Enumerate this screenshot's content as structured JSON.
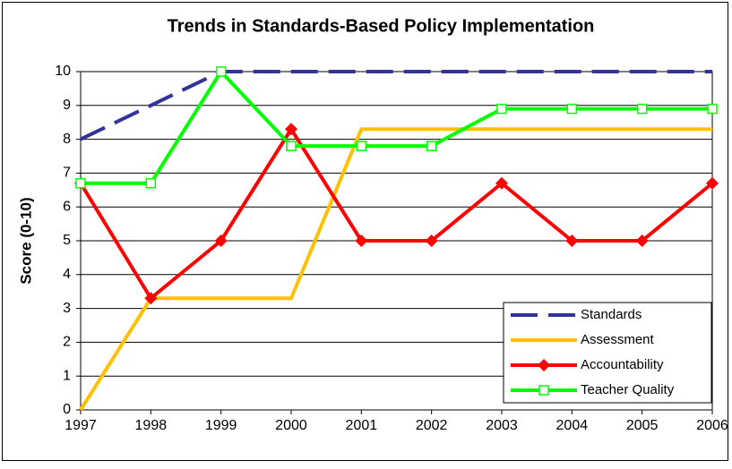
{
  "chart_data": {
    "type": "line",
    "title": "Trends in Standards-Based Policy Implementation",
    "y_label": "Score (0-10)",
    "x": [
      1997,
      1998,
      1999,
      2000,
      2001,
      2002,
      2003,
      2004,
      2005,
      2006
    ],
    "xlim": [
      1997,
      2006
    ],
    "xticks": [
      1997,
      1998,
      1999,
      2000,
      2001,
      2002,
      2003,
      2004,
      2005,
      2006
    ],
    "ylim": [
      0,
      10
    ],
    "yticks": [
      0,
      1,
      2,
      3,
      4,
      5,
      6,
      7,
      8,
      9,
      10
    ],
    "grid": true,
    "legend": "lower right",
    "series": [
      {
        "name": "Standards",
        "color": "#333399",
        "line_style": "dashed",
        "marker": "none",
        "values": [
          8,
          9,
          10,
          10,
          10,
          10,
          10,
          10,
          10,
          10
        ]
      },
      {
        "name": "Assessment",
        "color": "#ffc000",
        "line_style": "solid",
        "marker": "none",
        "values": [
          0,
          3.3,
          3.3,
          3.3,
          8.3,
          8.3,
          8.3,
          8.3,
          8.3,
          8.3
        ]
      },
      {
        "name": "Accountability",
        "color": "#ff0000",
        "line_style": "solid",
        "marker": "diamond",
        "values": [
          6.7,
          3.3,
          5,
          8.3,
          5,
          5,
          6.7,
          5,
          5,
          6.7
        ]
      },
      {
        "name": "Teacher Quality",
        "color": "#00ff00",
        "line_style": "solid",
        "marker": "square",
        "values": [
          6.7,
          6.7,
          10,
          7.8,
          7.8,
          7.8,
          8.9,
          8.9,
          8.9,
          8.9
        ]
      }
    ]
  }
}
